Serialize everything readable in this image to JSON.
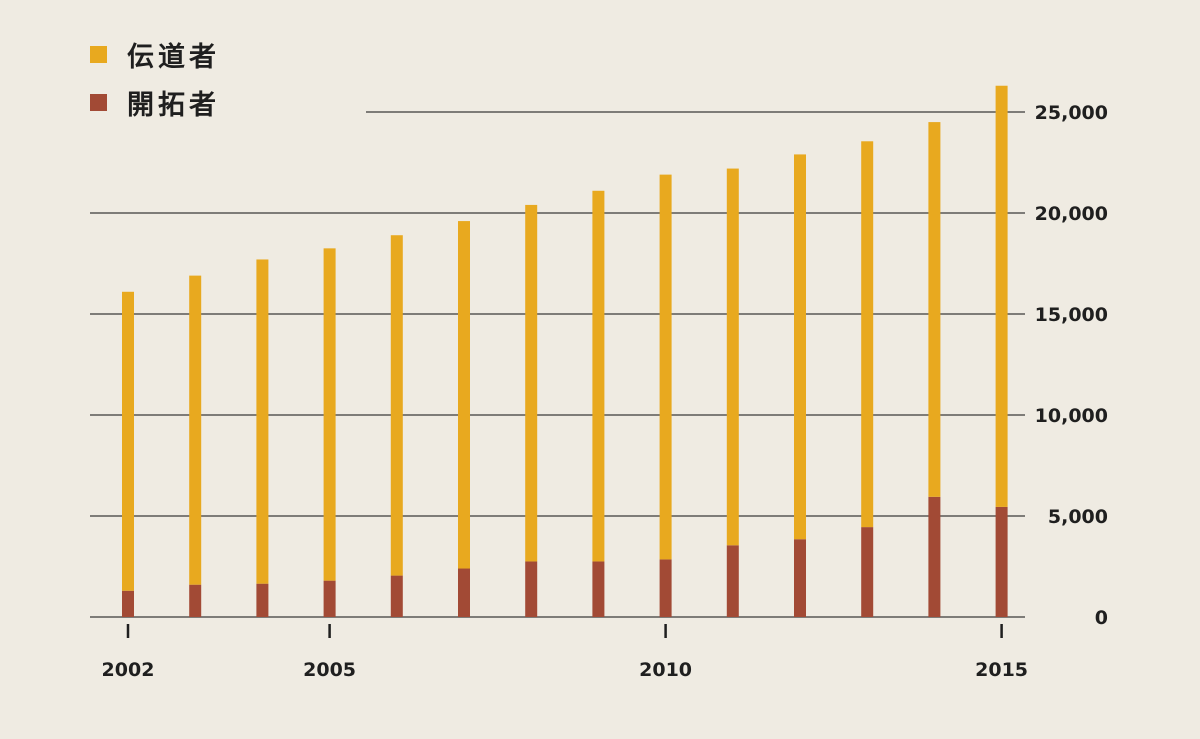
{
  "chart_data": {
    "type": "bar",
    "stacked": true,
    "categories": [
      "2002",
      "2003",
      "2004",
      "2005",
      "2006",
      "2007",
      "2008",
      "2009",
      "2010",
      "2011",
      "2012",
      "2013",
      "2014",
      "2015"
    ],
    "x_tick_labels": [
      "2002",
      "2005",
      "2010",
      "2015"
    ],
    "series": [
      {
        "name": "開拓者",
        "color": "#a24a35",
        "values": [
          1300,
          1600,
          1650,
          1800,
          2050,
          2400,
          2750,
          2750,
          2850,
          3550,
          3850,
          4450,
          5950,
          5450
        ]
      },
      {
        "name": "伝道者",
        "color": "#e8a91f",
        "values": [
          14800,
          15300,
          16050,
          16450,
          16850,
          17200,
          17650,
          18350,
          19050,
          18650,
          19050,
          19100,
          18550,
          20850
        ]
      }
    ],
    "totals": [
      16100,
      16900,
      17700,
      18250,
      18900,
      19600,
      20400,
      21100,
      21900,
      22200,
      22900,
      23550,
      24500,
      26300
    ],
    "y_tick_labels": [
      "0",
      "5,000",
      "10,000",
      "15,000",
      "20,000",
      "25,000"
    ],
    "y_ticks": [
      0,
      5000,
      10000,
      15000,
      20000,
      25000
    ],
    "ylim": [
      0,
      26500
    ],
    "y_axis_side": "right",
    "grid": true,
    "legend_position": "top-left",
    "title": "",
    "xlabel": "",
    "ylabel": ""
  }
}
